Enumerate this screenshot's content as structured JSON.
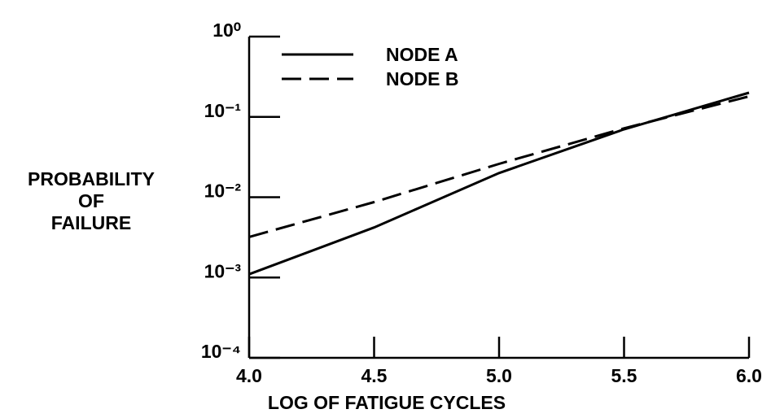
{
  "chart_data": {
    "type": "line",
    "xlabel": "LOG OF FATIGUE CYCLES",
    "ylabel": [
      "PROBABILITY",
      "OF",
      "FAILURE"
    ],
    "x": [
      4.0,
      4.5,
      5.0,
      5.5,
      6.0
    ],
    "series": [
      {
        "name": "NODE A",
        "color": "#000000",
        "linestyle": "solid",
        "values": [
          0.0011,
          0.0042,
          0.02,
          0.07,
          0.2
        ]
      },
      {
        "name": "NODE B",
        "color": "#000000",
        "linestyle": "dashed",
        "values": [
          0.0032,
          0.0087,
          0.026,
          0.072,
          0.18
        ]
      }
    ],
    "xlim": [
      4.0,
      6.0
    ],
    "xticks": [
      {
        "value": 4,
        "label": "4.0"
      },
      4.5,
      {
        "value": 5,
        "label": "5.0"
      },
      5.5,
      {
        "value": 6,
        "label": "6.0"
      }
    ],
    "ylim": [
      0.0001,
      1
    ],
    "yscale": "log",
    "yticks": [
      {
        "value": 0.0001,
        "label": "10⁻⁴"
      },
      {
        "value": 0.001,
        "label": "10⁻³"
      },
      {
        "value": 0.01,
        "label": "10⁻²"
      },
      {
        "value": 0.1,
        "label": "10⁻¹"
      },
      {
        "value": 1,
        "label": "10⁰"
      }
    ],
    "legend": "upper left",
    "grid": false
  }
}
